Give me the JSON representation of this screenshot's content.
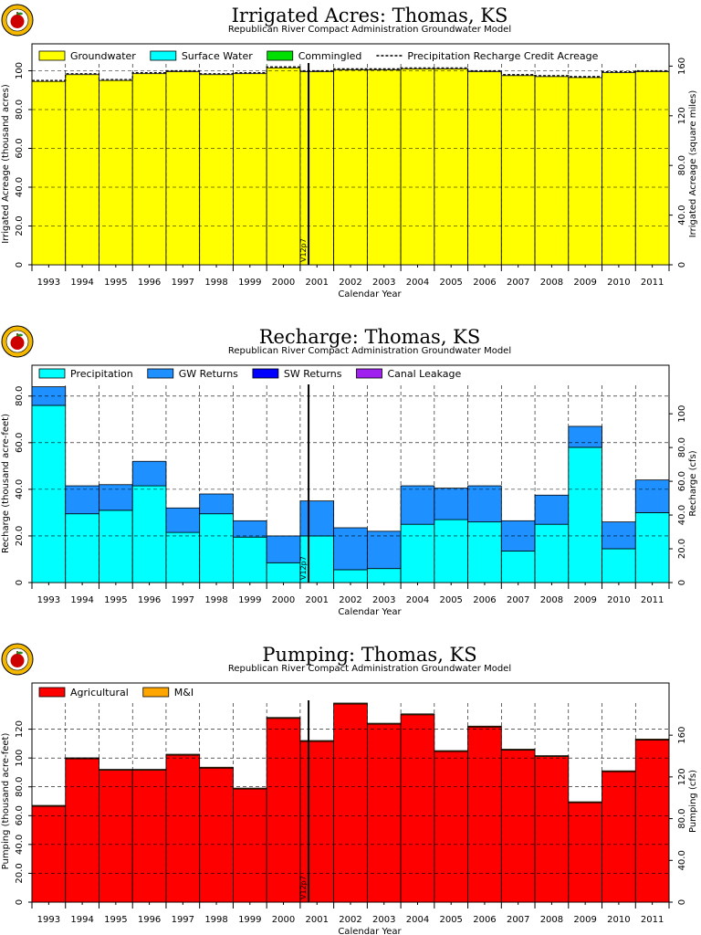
{
  "colors": {
    "groundwater": "#ffff00",
    "surface_water": "#00ffff",
    "commingled": "#00e000",
    "precipitation": "#00ffff",
    "gw_returns": "#1e90ff",
    "sw_returns": "#0000ff",
    "canal_leakage": "#a020f0",
    "agricultural": "#ff0000",
    "mi": "#ffa500",
    "logo_outer": "#f5b800",
    "logo_inner": "#cc0000"
  },
  "chart_data": [
    {
      "type": "bar",
      "title": "Irrigated Acres: Thomas, KS",
      "subtitle": "Republican River Compact Administration Groundwater Model",
      "xlabel": "Calendar Year",
      "ylabel": "Irrigated Acreage (thousand acres)",
      "ylabel_right": "Irrigated Acreage (square miles)",
      "ylim": [
        0,
        104
      ],
      "ylim_right": [
        0,
        162.5
      ],
      "yticks": [
        "0",
        "20.0",
        "40.0",
        "60.0",
        "80.0",
        "100"
      ],
      "yticks_right": [
        "0",
        "40.0",
        "80.0",
        "120",
        "160"
      ],
      "marker_label": "V12p7",
      "marker_year": 2000.75,
      "categories": [
        "1993",
        "1994",
        "1995",
        "1996",
        "1997",
        "1998",
        "1999",
        "2000",
        "2001",
        "2002",
        "2003",
        "2004",
        "2005",
        "2006",
        "2007",
        "2008",
        "2009",
        "2010",
        "2011"
      ],
      "series": [
        {
          "name": "Groundwater",
          "color_key": "groundwater",
          "kind": "stack",
          "values": [
            94.5,
            98.0,
            95.0,
            98.5,
            99.5,
            98.0,
            98.5,
            101.5,
            99.5,
            100.5,
            100.5,
            101.0,
            101.0,
            99.5,
            97.5,
            97.0,
            96.5,
            99.0,
            99.5
          ]
        },
        {
          "name": "Surface Water",
          "color_key": "surface_water",
          "kind": "stack",
          "values": [
            0,
            0,
            0,
            0,
            0,
            0,
            0,
            0,
            0,
            0,
            0,
            0,
            0,
            0,
            0,
            0,
            0,
            0,
            0
          ]
        },
        {
          "name": "Commingled",
          "color_key": "commingled",
          "kind": "stack",
          "values": [
            0,
            0,
            0,
            0,
            0,
            0,
            0,
            0,
            0,
            0,
            0,
            0,
            0,
            0,
            0,
            0,
            0,
            0,
            0
          ]
        },
        {
          "name": "Precipitation Recharge Credit Acreage",
          "kind": "dashed",
          "values": [
            95.0,
            98.5,
            95.5,
            99.0,
            100.0,
            98.5,
            99.0,
            102.0,
            100.0,
            101.0,
            101.0,
            101.5,
            101.5,
            100.0,
            98.0,
            97.5,
            97.0,
            99.5,
            100.0
          ]
        }
      ]
    },
    {
      "type": "bar",
      "title": "Recharge: Thomas, KS",
      "subtitle": "Republican River Compact Administration Groundwater Model",
      "xlabel": "Calendar Year",
      "ylabel": "Recharge (thousand acre-feet)",
      "ylabel_right": "Recharge (cfs)",
      "ylim": [
        0,
        85
      ],
      "ylim_right": [
        0,
        117.4
      ],
      "yticks": [
        "0",
        "20.0",
        "40.0",
        "60.0",
        "80.0"
      ],
      "yticks_right": [
        "0",
        "20.0",
        "40.0",
        "60.0",
        "80.0",
        "100"
      ],
      "marker_label": "V12p7",
      "marker_year": 2000.75,
      "categories": [
        "1993",
        "1994",
        "1995",
        "1996",
        "1997",
        "1998",
        "1999",
        "2000",
        "2001",
        "2002",
        "2003",
        "2004",
        "2005",
        "2006",
        "2007",
        "2008",
        "2009",
        "2010",
        "2011"
      ],
      "series": [
        {
          "name": "Precipitation",
          "color_key": "precipitation",
          "kind": "stack",
          "values": [
            76.0,
            29.5,
            31.0,
            41.5,
            21.5,
            29.5,
            19.5,
            8.5,
            20.0,
            5.5,
            6.0,
            25.0,
            27.0,
            26.0,
            13.5,
            25.0,
            58.0,
            14.5,
            30.0
          ]
        },
        {
          "name": "GW Returns",
          "color_key": "gw_returns",
          "kind": "stack",
          "values": [
            8.0,
            12.0,
            11.0,
            10.5,
            10.5,
            8.5,
            7.0,
            11.5,
            15.0,
            18.0,
            16.0,
            16.5,
            13.5,
            15.5,
            13.0,
            12.5,
            9.0,
            11.5,
            14.0
          ]
        },
        {
          "name": "SW Returns",
          "color_key": "sw_returns",
          "kind": "stack",
          "values": [
            0,
            0,
            0,
            0,
            0,
            0,
            0,
            0,
            0,
            0,
            0,
            0,
            0,
            0,
            0,
            0,
            0,
            0,
            0
          ]
        },
        {
          "name": "Canal Leakage",
          "color_key": "canal_leakage",
          "kind": "stack",
          "values": [
            0,
            0,
            0,
            0,
            0,
            0,
            0,
            0,
            0,
            0,
            0,
            0,
            0,
            0,
            0,
            0,
            0,
            0,
            0
          ]
        }
      ]
    },
    {
      "type": "bar",
      "title": "Pumping: Thomas, KS",
      "subtitle": "Republican River Compact Administration Groundwater Model",
      "xlabel": "Calendar Year",
      "ylabel": "Pumping (thousand acre-feet)",
      "ylabel_right": "Pumping (cfs)",
      "ylim": [
        0,
        140
      ],
      "ylim_right": [
        0,
        193.4
      ],
      "yticks": [
        "0",
        "20.0",
        "40.0",
        "60.0",
        "80.0",
        "100",
        "120"
      ],
      "yticks_right": [
        "0",
        "40.0",
        "80.0",
        "120",
        "160"
      ],
      "marker_label": "V12p7",
      "marker_year": 2000.75,
      "categories": [
        "1993",
        "1994",
        "1995",
        "1996",
        "1997",
        "1998",
        "1999",
        "2000",
        "2001",
        "2002",
        "2003",
        "2004",
        "2005",
        "2006",
        "2007",
        "2008",
        "2009",
        "2010",
        "2011"
      ],
      "series": [
        {
          "name": "Agricultural",
          "color_key": "agricultural",
          "kind": "stack",
          "values": [
            66.5,
            99.5,
            91.5,
            91.5,
            102.0,
            93.0,
            78.5,
            127.5,
            111.5,
            137.5,
            123.5,
            130.0,
            104.5,
            121.5,
            105.5,
            101.0,
            69.0,
            90.5,
            112.5
          ]
        },
        {
          "name": "M&I",
          "color_key": "mi",
          "kind": "stack",
          "values": [
            0.6,
            0.6,
            0.6,
            0.6,
            0.6,
            0.6,
            0.6,
            0.6,
            0.6,
            0.6,
            0.6,
            0.6,
            0.6,
            0.6,
            0.6,
            0.6,
            0.6,
            0.6,
            0.6
          ]
        }
      ]
    }
  ]
}
